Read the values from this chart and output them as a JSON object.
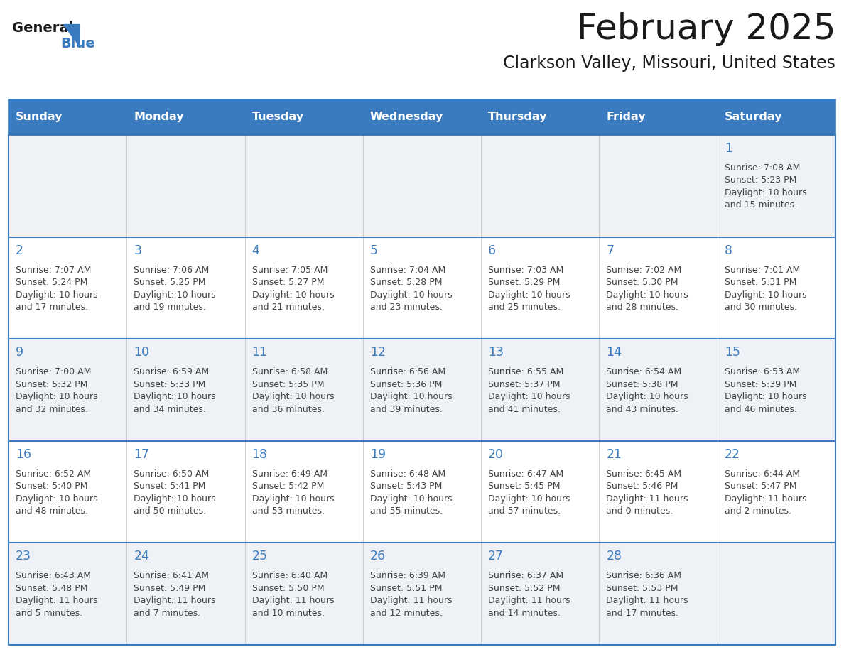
{
  "title": "February 2025",
  "subtitle": "Clarkson Valley, Missouri, United States",
  "days_of_week": [
    "Sunday",
    "Monday",
    "Tuesday",
    "Wednesday",
    "Thursday",
    "Friday",
    "Saturday"
  ],
  "header_bg": "#3a7bbf",
  "header_text": "#ffffff",
  "row_bg_odd": "#eef2f7",
  "row_bg_even": "#ffffff",
  "border_color": "#3a7bbf",
  "day_number_color": "#3a7bbf",
  "text_color": "#444444",
  "title_color": "#1a1a1a",
  "subtitle_color": "#1a1a1a",
  "logo_general_color": "#1a1a1a",
  "logo_blue_color": "#3a7bbf",
  "calendar": [
    [
      null,
      null,
      null,
      null,
      null,
      null,
      {
        "day": 1,
        "sunrise": "7:08 AM",
        "sunset": "5:23 PM",
        "daylight": "10 hours",
        "daylight2": "and 15 minutes."
      }
    ],
    [
      {
        "day": 2,
        "sunrise": "7:07 AM",
        "sunset": "5:24 PM",
        "daylight": "10 hours",
        "daylight2": "and 17 minutes."
      },
      {
        "day": 3,
        "sunrise": "7:06 AM",
        "sunset": "5:25 PM",
        "daylight": "10 hours",
        "daylight2": "and 19 minutes."
      },
      {
        "day": 4,
        "sunrise": "7:05 AM",
        "sunset": "5:27 PM",
        "daylight": "10 hours",
        "daylight2": "and 21 minutes."
      },
      {
        "day": 5,
        "sunrise": "7:04 AM",
        "sunset": "5:28 PM",
        "daylight": "10 hours",
        "daylight2": "and 23 minutes."
      },
      {
        "day": 6,
        "sunrise": "7:03 AM",
        "sunset": "5:29 PM",
        "daylight": "10 hours",
        "daylight2": "and 25 minutes."
      },
      {
        "day": 7,
        "sunrise": "7:02 AM",
        "sunset": "5:30 PM",
        "daylight": "10 hours",
        "daylight2": "and 28 minutes."
      },
      {
        "day": 8,
        "sunrise": "7:01 AM",
        "sunset": "5:31 PM",
        "daylight": "10 hours",
        "daylight2": "and 30 minutes."
      }
    ],
    [
      {
        "day": 9,
        "sunrise": "7:00 AM",
        "sunset": "5:32 PM",
        "daylight": "10 hours",
        "daylight2": "and 32 minutes."
      },
      {
        "day": 10,
        "sunrise": "6:59 AM",
        "sunset": "5:33 PM",
        "daylight": "10 hours",
        "daylight2": "and 34 minutes."
      },
      {
        "day": 11,
        "sunrise": "6:58 AM",
        "sunset": "5:35 PM",
        "daylight": "10 hours",
        "daylight2": "and 36 minutes."
      },
      {
        "day": 12,
        "sunrise": "6:56 AM",
        "sunset": "5:36 PM",
        "daylight": "10 hours",
        "daylight2": "and 39 minutes."
      },
      {
        "day": 13,
        "sunrise": "6:55 AM",
        "sunset": "5:37 PM",
        "daylight": "10 hours",
        "daylight2": "and 41 minutes."
      },
      {
        "day": 14,
        "sunrise": "6:54 AM",
        "sunset": "5:38 PM",
        "daylight": "10 hours",
        "daylight2": "and 43 minutes."
      },
      {
        "day": 15,
        "sunrise": "6:53 AM",
        "sunset": "5:39 PM",
        "daylight": "10 hours",
        "daylight2": "and 46 minutes."
      }
    ],
    [
      {
        "day": 16,
        "sunrise": "6:52 AM",
        "sunset": "5:40 PM",
        "daylight": "10 hours",
        "daylight2": "and 48 minutes."
      },
      {
        "day": 17,
        "sunrise": "6:50 AM",
        "sunset": "5:41 PM",
        "daylight": "10 hours",
        "daylight2": "and 50 minutes."
      },
      {
        "day": 18,
        "sunrise": "6:49 AM",
        "sunset": "5:42 PM",
        "daylight": "10 hours",
        "daylight2": "and 53 minutes."
      },
      {
        "day": 19,
        "sunrise": "6:48 AM",
        "sunset": "5:43 PM",
        "daylight": "10 hours",
        "daylight2": "and 55 minutes."
      },
      {
        "day": 20,
        "sunrise": "6:47 AM",
        "sunset": "5:45 PM",
        "daylight": "10 hours",
        "daylight2": "and 57 minutes."
      },
      {
        "day": 21,
        "sunrise": "6:45 AM",
        "sunset": "5:46 PM",
        "daylight": "11 hours",
        "daylight2": "and 0 minutes."
      },
      {
        "day": 22,
        "sunrise": "6:44 AM",
        "sunset": "5:47 PM",
        "daylight": "11 hours",
        "daylight2": "and 2 minutes."
      }
    ],
    [
      {
        "day": 23,
        "sunrise": "6:43 AM",
        "sunset": "5:48 PM",
        "daylight": "11 hours",
        "daylight2": "and 5 minutes."
      },
      {
        "day": 24,
        "sunrise": "6:41 AM",
        "sunset": "5:49 PM",
        "daylight": "11 hours",
        "daylight2": "and 7 minutes."
      },
      {
        "day": 25,
        "sunrise": "6:40 AM",
        "sunset": "5:50 PM",
        "daylight": "11 hours",
        "daylight2": "and 10 minutes."
      },
      {
        "day": 26,
        "sunrise": "6:39 AM",
        "sunset": "5:51 PM",
        "daylight": "11 hours",
        "daylight2": "and 12 minutes."
      },
      {
        "day": 27,
        "sunrise": "6:37 AM",
        "sunset": "5:52 PM",
        "daylight": "11 hours",
        "daylight2": "and 14 minutes."
      },
      {
        "day": 28,
        "sunrise": "6:36 AM",
        "sunset": "5:53 PM",
        "daylight": "11 hours",
        "daylight2": "and 17 minutes."
      },
      null
    ]
  ]
}
